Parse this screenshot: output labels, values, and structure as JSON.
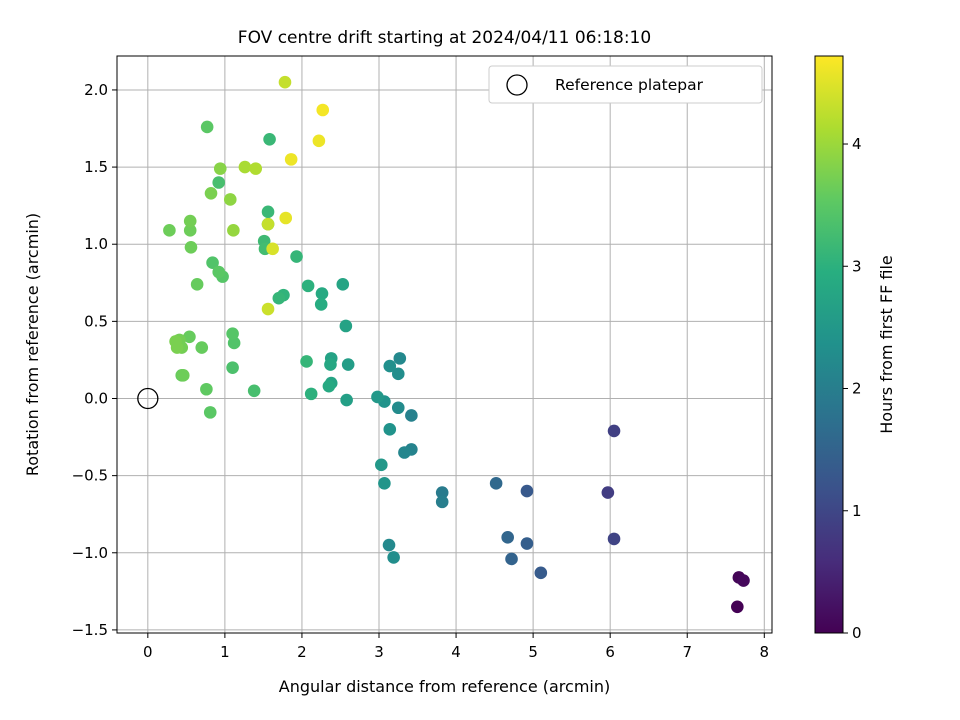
{
  "chart_data": {
    "type": "scatter",
    "title": "FOV centre drift starting at 2024/04/11 06:18:10",
    "xlabel": "Angular distance from reference (arcmin)",
    "ylabel": "Rotation from reference (arcmin)",
    "xlim": [
      -0.4,
      8.1
    ],
    "ylim": [
      -1.52,
      2.22
    ],
    "xticks": [
      "0",
      "1",
      "2",
      "3",
      "4",
      "5",
      "6",
      "7",
      "8"
    ],
    "yticks": [
      "−1.5",
      "−1.0",
      "−0.5",
      "0.0",
      "0.5",
      "1.0",
      "1.5",
      "2.0"
    ],
    "grid": true,
    "legend": {
      "label": "Reference platepar",
      "position": "top-right"
    },
    "reference_point": {
      "x": 0,
      "y": 0
    },
    "colorbar": {
      "label": "Hours from first FF file",
      "range": [
        0,
        4.72
      ],
      "ticks": [
        "0",
        "1",
        "2",
        "3",
        "4"
      ],
      "colormap": "viridis"
    },
    "points": [
      {
        "x": 7.65,
        "y": -1.35,
        "h": 0.0
      },
      {
        "x": 7.67,
        "y": -1.16,
        "h": 0.05
      },
      {
        "x": 7.73,
        "y": -1.18,
        "h": 0.1
      },
      {
        "x": 6.05,
        "y": -0.21,
        "h": 0.9
      },
      {
        "x": 6.05,
        "y": -0.91,
        "h": 0.95
      },
      {
        "x": 5.97,
        "y": -0.61,
        "h": 0.85
      },
      {
        "x": 5.1,
        "y": -1.13,
        "h": 1.35
      },
      {
        "x": 4.92,
        "y": -0.6,
        "h": 1.3
      },
      {
        "x": 4.92,
        "y": -0.94,
        "h": 1.4
      },
      {
        "x": 4.72,
        "y": -1.04,
        "h": 1.5
      },
      {
        "x": 4.67,
        "y": -0.9,
        "h": 1.55
      },
      {
        "x": 4.52,
        "y": -0.55,
        "h": 1.6
      },
      {
        "x": 3.82,
        "y": -0.61,
        "h": 1.95
      },
      {
        "x": 3.82,
        "y": -0.67,
        "h": 2.0
      },
      {
        "x": 3.42,
        "y": -0.11,
        "h": 2.05
      },
      {
        "x": 3.42,
        "y": -0.33,
        "h": 2.1
      },
      {
        "x": 3.33,
        "y": -0.35,
        "h": 2.15
      },
      {
        "x": 3.27,
        "y": 0.26,
        "h": 2.2
      },
      {
        "x": 3.25,
        "y": -0.06,
        "h": 2.25
      },
      {
        "x": 3.25,
        "y": 0.16,
        "h": 2.3
      },
      {
        "x": 3.14,
        "y": 0.21,
        "h": 2.35
      },
      {
        "x": 3.14,
        "y": -0.2,
        "h": 2.4
      },
      {
        "x": 3.13,
        "y": -0.95,
        "h": 2.2
      },
      {
        "x": 3.19,
        "y": -1.03,
        "h": 2.3
      },
      {
        "x": 3.07,
        "y": -0.02,
        "h": 2.4
      },
      {
        "x": 3.07,
        "y": -0.55,
        "h": 2.45
      },
      {
        "x": 3.03,
        "y": -0.43,
        "h": 2.5
      },
      {
        "x": 2.98,
        "y": 0.01,
        "h": 2.5
      },
      {
        "x": 2.6,
        "y": 0.22,
        "h": 2.6
      },
      {
        "x": 2.58,
        "y": -0.01,
        "h": 2.65
      },
      {
        "x": 2.57,
        "y": 0.47,
        "h": 2.7
      },
      {
        "x": 2.53,
        "y": 0.74,
        "h": 2.75
      },
      {
        "x": 2.38,
        "y": 0.26,
        "h": 2.7
      },
      {
        "x": 2.38,
        "y": 0.1,
        "h": 2.75
      },
      {
        "x": 2.37,
        "y": 0.22,
        "h": 2.8
      },
      {
        "x": 2.35,
        "y": 0.08,
        "h": 2.85
      },
      {
        "x": 2.26,
        "y": 0.68,
        "h": 2.85
      },
      {
        "x": 2.25,
        "y": 0.61,
        "h": 2.9
      },
      {
        "x": 2.12,
        "y": 0.03,
        "h": 3.0
      },
      {
        "x": 2.08,
        "y": 0.73,
        "h": 3.0
      },
      {
        "x": 2.06,
        "y": 0.24,
        "h": 3.1
      },
      {
        "x": 1.93,
        "y": 0.92,
        "h": 3.1
      },
      {
        "x": 1.76,
        "y": 0.67,
        "h": 3.05
      },
      {
        "x": 1.7,
        "y": 0.65,
        "h": 3.1
      },
      {
        "x": 1.58,
        "y": 1.68,
        "h": 3.15
      },
      {
        "x": 1.56,
        "y": 1.21,
        "h": 3.15
      },
      {
        "x": 1.56,
        "y": 1.13,
        "h": 3.2
      },
      {
        "x": 1.51,
        "y": 1.02,
        "h": 3.2
      },
      {
        "x": 1.52,
        "y": 0.97,
        "h": 3.25
      },
      {
        "x": 1.38,
        "y": 0.05,
        "h": 3.3
      },
      {
        "x": 1.1,
        "y": 0.2,
        "h": 3.35
      },
      {
        "x": 1.12,
        "y": 0.36,
        "h": 3.4
      },
      {
        "x": 1.1,
        "y": 0.42,
        "h": 3.45
      },
      {
        "x": 0.92,
        "y": 1.4,
        "h": 3.3
      },
      {
        "x": 0.84,
        "y": 0.88,
        "h": 3.4
      },
      {
        "x": 0.97,
        "y": 0.79,
        "h": 3.45
      },
      {
        "x": 0.92,
        "y": 0.82,
        "h": 3.5
      },
      {
        "x": 0.77,
        "y": 1.76,
        "h": 3.5
      },
      {
        "x": 0.81,
        "y": -0.09,
        "h": 3.5
      },
      {
        "x": 0.76,
        "y": 0.06,
        "h": 3.55
      },
      {
        "x": 0.7,
        "y": 0.33,
        "h": 3.6
      },
      {
        "x": 0.64,
        "y": 0.74,
        "h": 3.6
      },
      {
        "x": 0.56,
        "y": 0.98,
        "h": 3.65
      },
      {
        "x": 0.55,
        "y": 1.09,
        "h": 3.65
      },
      {
        "x": 0.55,
        "y": 1.15,
        "h": 3.7
      },
      {
        "x": 0.54,
        "y": 0.4,
        "h": 3.6
      },
      {
        "x": 0.44,
        "y": 0.15,
        "h": 3.6
      },
      {
        "x": 0.46,
        "y": 0.15,
        "h": 3.65
      },
      {
        "x": 0.44,
        "y": 0.33,
        "h": 3.7
      },
      {
        "x": 0.41,
        "y": 0.38,
        "h": 3.7
      },
      {
        "x": 0.38,
        "y": 0.33,
        "h": 3.75
      },
      {
        "x": 0.36,
        "y": 0.37,
        "h": 3.75
      },
      {
        "x": 0.28,
        "y": 1.09,
        "h": 3.65
      },
      {
        "x": 0.82,
        "y": 1.33,
        "h": 3.75
      },
      {
        "x": 0.94,
        "y": 1.49,
        "h": 3.85
      },
      {
        "x": 1.07,
        "y": 1.29,
        "h": 3.9
      },
      {
        "x": 1.11,
        "y": 1.09,
        "h": 3.95
      },
      {
        "x": 1.26,
        "y": 1.5,
        "h": 4.1
      },
      {
        "x": 1.4,
        "y": 1.49,
        "h": 4.15
      },
      {
        "x": 1.56,
        "y": 1.13,
        "h": 4.3
      },
      {
        "x": 1.56,
        "y": 0.58,
        "h": 4.35
      },
      {
        "x": 1.62,
        "y": 0.97,
        "h": 4.45
      },
      {
        "x": 1.79,
        "y": 1.17,
        "h": 4.55
      },
      {
        "x": 1.78,
        "y": 2.05,
        "h": 4.3
      },
      {
        "x": 1.86,
        "y": 1.55,
        "h": 4.6
      },
      {
        "x": 2.22,
        "y": 1.67,
        "h": 4.6
      },
      {
        "x": 2.27,
        "y": 1.87,
        "h": 4.65
      }
    ]
  }
}
